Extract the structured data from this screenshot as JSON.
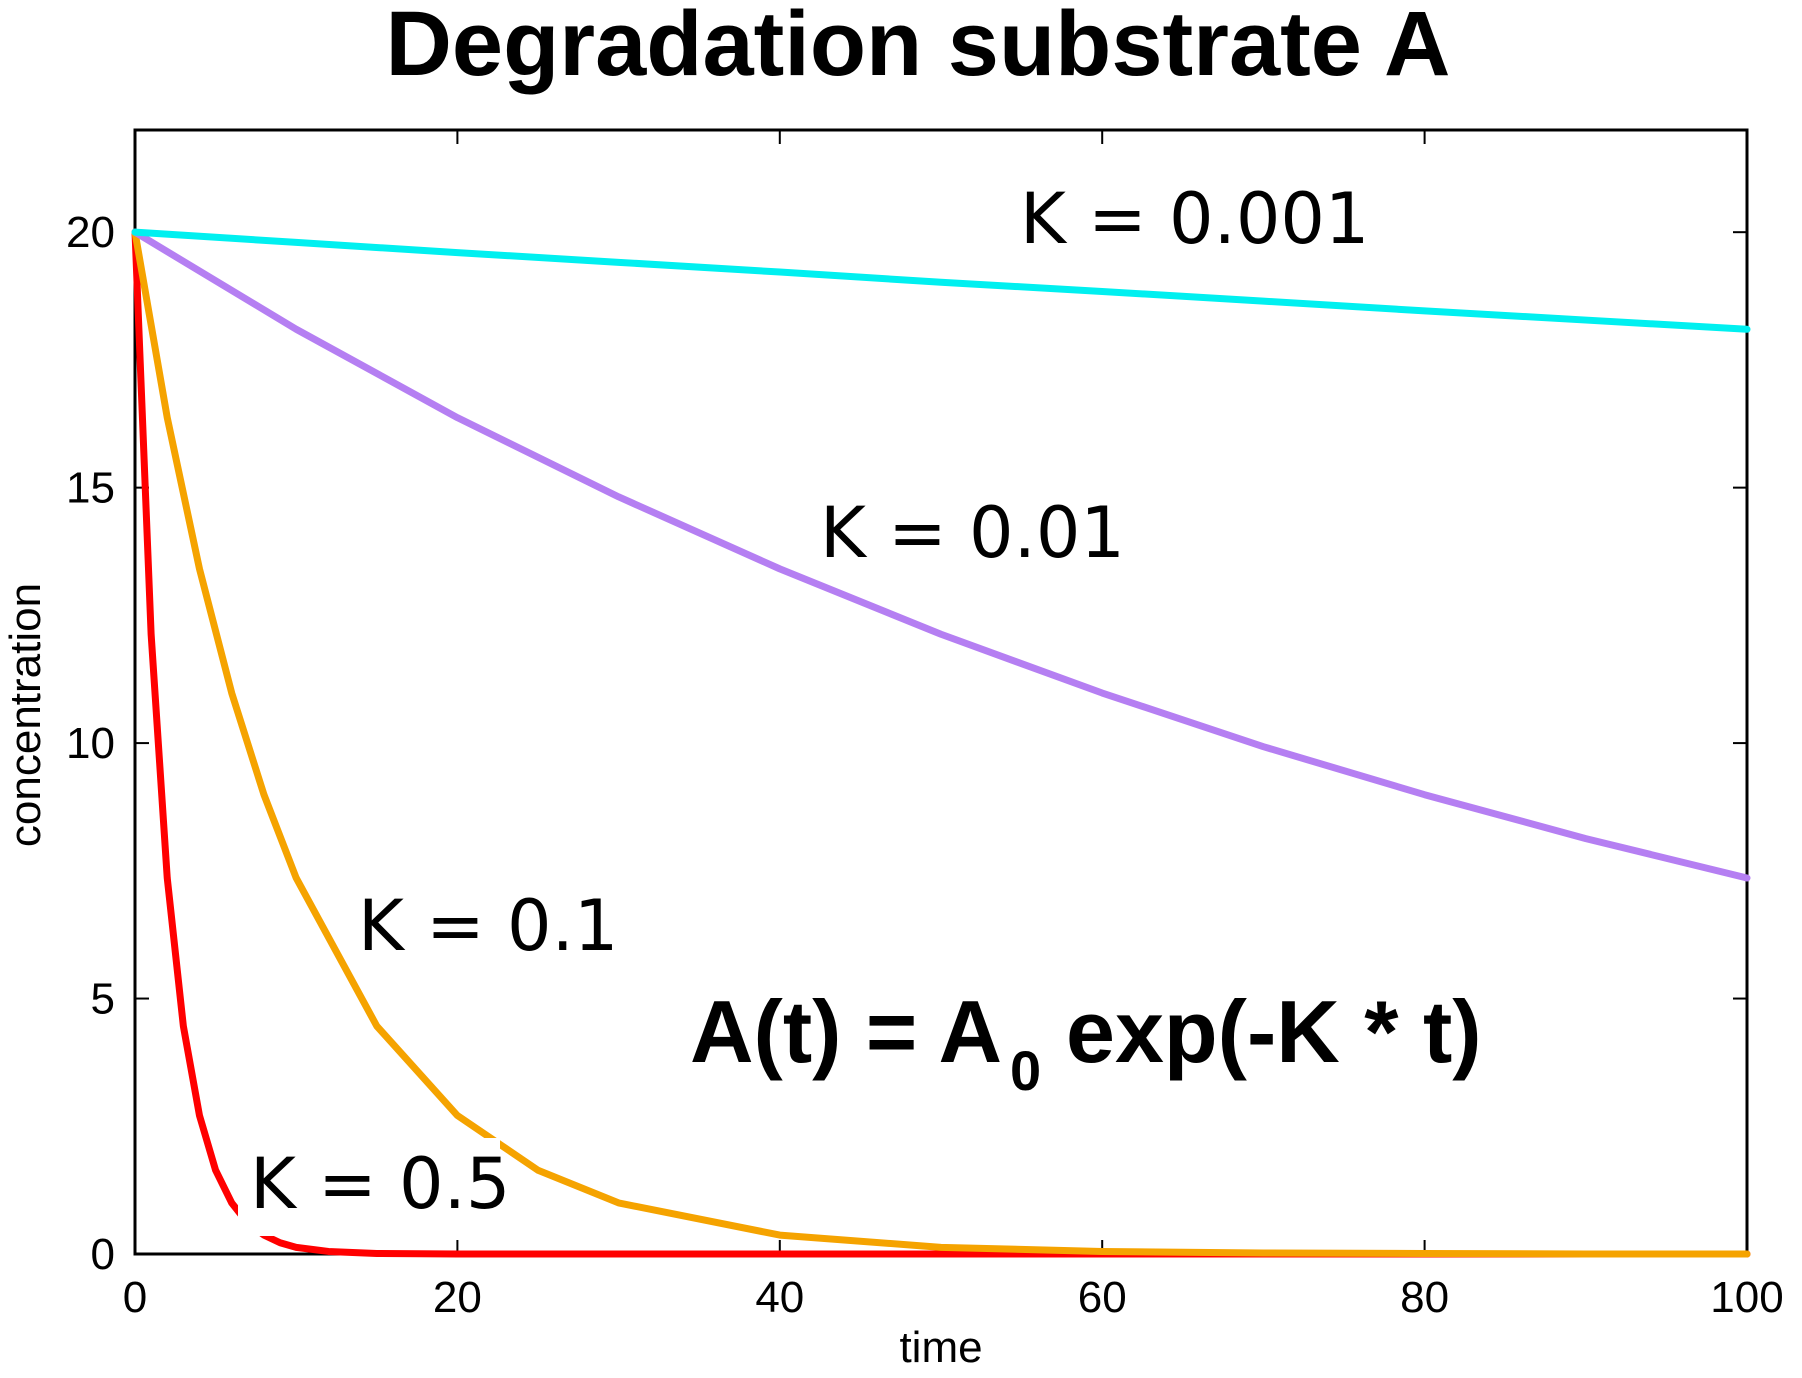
{
  "chart_data": {
    "type": "line",
    "title": "Degradation substrate A",
    "xlabel": "time",
    "ylabel": "concentration",
    "xlim": [
      0,
      100
    ],
    "ylim": [
      0,
      22
    ],
    "x_ticks": [
      0,
      20,
      40,
      60,
      80,
      100
    ],
    "y_ticks": [
      0,
      5,
      10,
      15,
      20
    ],
    "x_tick_labels": [
      "0",
      "20",
      "40",
      "60",
      "80",
      "100"
    ],
    "y_tick_labels": [
      "0",
      "5",
      "10",
      "15",
      "20"
    ],
    "grid": false,
    "legend": "none",
    "series": [
      {
        "name": "K = 0.001",
        "color": "#00f0f0",
        "x": [
          0,
          10,
          20,
          30,
          40,
          50,
          60,
          70,
          80,
          90,
          100
        ],
        "values": [
          20,
          19.8,
          19.6,
          19.41,
          19.22,
          19.02,
          18.84,
          18.65,
          18.46,
          18.28,
          18.1
        ]
      },
      {
        "name": "K = 0.01",
        "color": "#b57ff2",
        "x": [
          0,
          10,
          20,
          30,
          40,
          50,
          60,
          70,
          80,
          90,
          100
        ],
        "values": [
          20,
          18.1,
          16.37,
          14.82,
          13.41,
          12.13,
          10.98,
          9.93,
          8.99,
          8.13,
          7.36
        ]
      },
      {
        "name": "K = 0.1",
        "color": "#f5a300",
        "x": [
          0,
          2,
          4,
          6,
          8,
          10,
          15,
          20,
          25,
          30,
          40,
          50,
          60,
          70,
          80,
          90,
          100
        ],
        "values": [
          20,
          16.37,
          13.41,
          10.98,
          8.99,
          7.36,
          4.46,
          2.71,
          1.64,
          1.0,
          0.37,
          0.13,
          0.05,
          0.02,
          0.01,
          0.0,
          0.0
        ]
      },
      {
        "name": "K = 0.5",
        "color": "#ff0000",
        "x": [
          0,
          1,
          2,
          3,
          4,
          5,
          6,
          7,
          8,
          9,
          10,
          12,
          15,
          20,
          40,
          60,
          80,
          100
        ],
        "values": [
          20,
          12.13,
          7.36,
          4.46,
          2.71,
          1.64,
          1.0,
          0.6,
          0.37,
          0.22,
          0.13,
          0.05,
          0.01,
          0.0,
          0.0,
          0.0,
          0.0,
          0.0
        ]
      }
    ],
    "annotations": {
      "k_001": "K = 0.001",
      "k_01": "K = 0.01",
      "k_1": "K = 0.1",
      "k_5": "K = 0.5",
      "formula_main": "A(t) = A",
      "formula_sub": "0",
      "formula_rest": "exp(-K * t)",
      "k_01_color": "#b07fe0"
    }
  }
}
